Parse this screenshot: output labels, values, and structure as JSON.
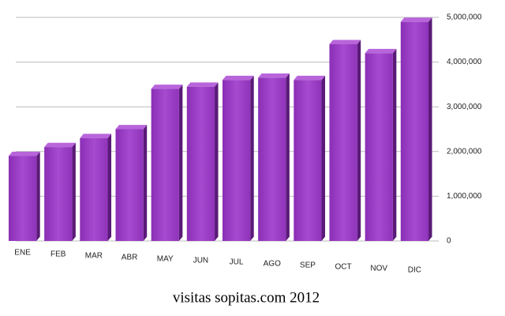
{
  "chart_data": {
    "type": "bar",
    "title": "visitas sopitas.com 2012",
    "categories": [
      "ENE",
      "FEB",
      "MAR",
      "ABR",
      "MAY",
      "JUN",
      "JUL",
      "AGO",
      "SEP",
      "OCT",
      "NOV",
      "DIC"
    ],
    "values": [
      1900000,
      2100000,
      2300000,
      2500000,
      3400000,
      3450000,
      3600000,
      3650000,
      3600000,
      4400000,
      4200000,
      4900000
    ],
    "color": "#9a3dc4",
    "ylim": [
      0,
      5000000
    ],
    "yticks": [
      0,
      {
        "value": 1000000,
        "label": "1,000,000"
      },
      {
        "value": 2000000,
        "label": "2,000,000"
      },
      {
        "value": 3000000,
        "label": "3,000,000"
      },
      {
        "value": 4000000,
        "label": "4,000,000"
      },
      {
        "value": 5000000,
        "label": "5,000,000"
      }
    ],
    "grid": true
  }
}
